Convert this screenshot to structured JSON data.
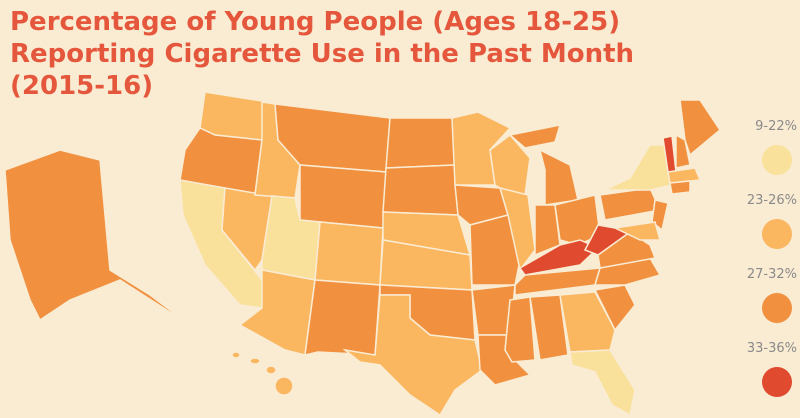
{
  "title": "Percentage of Young People (Ages 18-25) Reporting Cigarette Use in the Past Month (2015-16)",
  "legend": [
    {
      "label": "9-22%",
      "color": "#f9e09b"
    },
    {
      "label": "23-26%",
      "color": "#fbb660"
    },
    {
      "label": "27-32%",
      "color": "#f1903f"
    },
    {
      "label": "33-36%",
      "color": "#e04a2f"
    }
  ]
}
